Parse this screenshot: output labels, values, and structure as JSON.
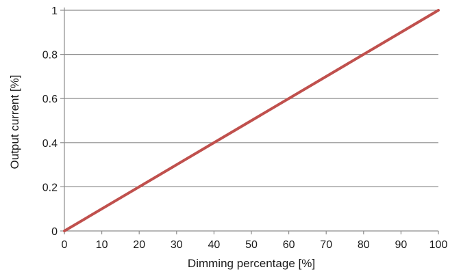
{
  "chart_data": {
    "type": "line",
    "title": "",
    "xlabel": "Dimming percentage [%]",
    "ylabel": "Output current [%]",
    "xlim": [
      0,
      100
    ],
    "ylim": [
      0,
      1
    ],
    "x_ticks": [
      "0",
      "10",
      "20",
      "30",
      "40",
      "50",
      "60",
      "70",
      "80",
      "90",
      "100"
    ],
    "y_ticks": [
      "0",
      "0.2",
      "0.4",
      "0.6",
      "0.8",
      "1"
    ],
    "grid": "horizontal",
    "legend": "none",
    "series": [
      {
        "color": "#c0504d",
        "x": [
          0,
          100
        ],
        "y": [
          0,
          1
        ]
      }
    ]
  }
}
